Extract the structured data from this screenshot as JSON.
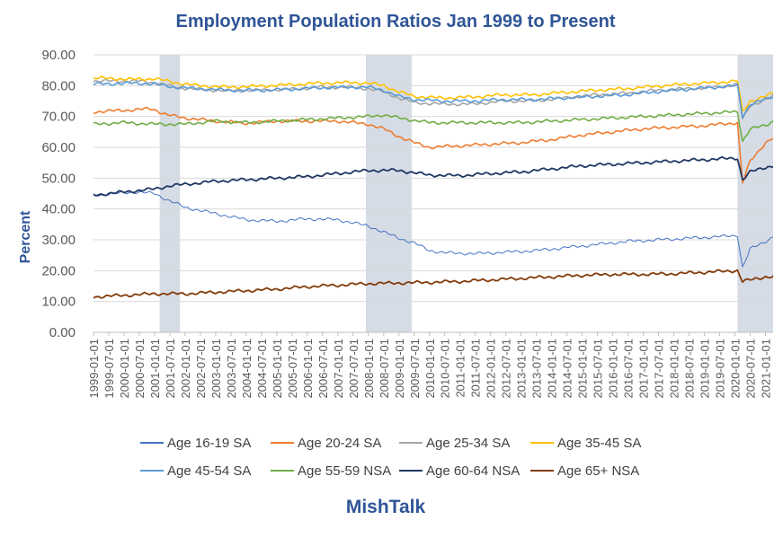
{
  "chart_data": {
    "type": "line",
    "title": "Employment Population Ratios Jan 1999 to Present",
    "ylabel": "Percent",
    "xlabel": "",
    "ylim": [
      0,
      90
    ],
    "yticks": [
      "0.00",
      "10.00",
      "20.00",
      "30.00",
      "40.00",
      "50.00",
      "60.00",
      "70.00",
      "80.00",
      "90.00"
    ],
    "x_start": "1999-01",
    "x_end": "2021-04",
    "x_tick_labels": [
      "1999-01-01",
      "1999-07-01",
      "2000-01-01",
      "2000-07-01",
      "2001-01-01",
      "2001-07-01",
      "2002-01-01",
      "2002-07-01",
      "2003-01-01",
      "2003-07-01",
      "2004-01-01",
      "2004-07-01",
      "2005-01-01",
      "2005-07-01",
      "2006-01-01",
      "2006-07-01",
      "2007-01-01",
      "2007-07-01",
      "2008-01-01",
      "2008-07-01",
      "2009-01-01",
      "2009-07-01",
      "2010-01-01",
      "2010-07-01",
      "2011-01-01",
      "2011-07-01",
      "2012-01-01",
      "2012-07-01",
      "2013-01-01",
      "2013-07-01",
      "2014-01-01",
      "2014-07-01",
      "2015-01-01",
      "2015-07-01",
      "2016-01-01",
      "2016-07-01",
      "2017-01-01",
      "2017-07-01",
      "2018-01-01",
      "2018-07-01",
      "2019-01-01",
      "2019-07-01",
      "2020-01-01",
      "2020-07-01",
      "2021-01-01"
    ],
    "recessions": [
      {
        "start": "2001-03",
        "end": "2001-11"
      },
      {
        "start": "2007-12",
        "end": "2009-06"
      },
      {
        "start": "2020-02",
        "end": "2021-04"
      }
    ],
    "series": [
      {
        "name": "Age 16-19 SA",
        "color": "#4472c4",
        "width": 1,
        "keypoints": [
          [
            "1999-01",
            44.5
          ],
          [
            "2000-06",
            45.5
          ],
          [
            "2001-01",
            45.0
          ],
          [
            "2001-06",
            43.0
          ],
          [
            "2002-01",
            40.5
          ],
          [
            "2003-01",
            38.5
          ],
          [
            "2004-01",
            36.5
          ],
          [
            "2005-01",
            36.0
          ],
          [
            "2006-01",
            36.8
          ],
          [
            "2007-01",
            36.5
          ],
          [
            "2008-01",
            34.5
          ],
          [
            "2008-07",
            32.5
          ],
          [
            "2009-01",
            30.5
          ],
          [
            "2009-07",
            29.0
          ],
          [
            "2010-01",
            26.5
          ],
          [
            "2010-07",
            25.8
          ],
          [
            "2011-07",
            25.5
          ],
          [
            "2012-07",
            26.0
          ],
          [
            "2013-07",
            26.5
          ],
          [
            "2014-07",
            27.5
          ],
          [
            "2015-07",
            28.5
          ],
          [
            "2016-07",
            29.5
          ],
          [
            "2017-07",
            30.0
          ],
          [
            "2018-07",
            30.5
          ],
          [
            "2019-07",
            31.0
          ],
          [
            "2020-02",
            31.5
          ],
          [
            "2020-04",
            21.0
          ],
          [
            "2020-07",
            27.0
          ],
          [
            "2021-01",
            29.5
          ],
          [
            "2021-04",
            31.0
          ]
        ]
      },
      {
        "name": "Age 20-24 SA",
        "color": "#ed7d31",
        "width": 1.6,
        "keypoints": [
          [
            "1999-01",
            71.5
          ],
          [
            "2000-01",
            72.0
          ],
          [
            "2000-12",
            72.5
          ],
          [
            "2001-06",
            70.5
          ],
          [
            "2002-01",
            69.5
          ],
          [
            "2003-01",
            68.5
          ],
          [
            "2004-01",
            67.8
          ],
          [
            "2005-01",
            68.5
          ],
          [
            "2006-01",
            68.5
          ],
          [
            "2007-01",
            68.5
          ],
          [
            "2008-01",
            67.5
          ],
          [
            "2008-07",
            66.0
          ],
          [
            "2009-01",
            63.5
          ],
          [
            "2009-07",
            61.5
          ],
          [
            "2010-01",
            60.0
          ],
          [
            "2011-01",
            60.5
          ],
          [
            "2012-01",
            61.0
          ],
          [
            "2013-01",
            61.5
          ],
          [
            "2014-01",
            62.5
          ],
          [
            "2015-01",
            64.0
          ],
          [
            "2016-01",
            65.0
          ],
          [
            "2017-01",
            66.0
          ],
          [
            "2018-01",
            66.5
          ],
          [
            "2019-01",
            67.0
          ],
          [
            "2020-02",
            68.0
          ],
          [
            "2020-04",
            48.5
          ],
          [
            "2020-07",
            55.5
          ],
          [
            "2021-01",
            61.5
          ],
          [
            "2021-04",
            63.0
          ]
        ]
      },
      {
        "name": "Age 25-34 SA",
        "color": "#a5a5a5",
        "width": 1.6,
        "keypoints": [
          [
            "1999-01",
            81.5
          ],
          [
            "2000-06",
            81.5
          ],
          [
            "2001-01",
            81.0
          ],
          [
            "2001-09",
            79.5
          ],
          [
            "2002-06",
            78.8
          ],
          [
            "2003-06",
            78.3
          ],
          [
            "2004-06",
            78.5
          ],
          [
            "2005-06",
            78.8
          ],
          [
            "2006-06",
            79.5
          ],
          [
            "2007-06",
            79.5
          ],
          [
            "2008-01",
            79.0
          ],
          [
            "2008-07",
            78.0
          ],
          [
            "2009-01",
            76.0
          ],
          [
            "2009-07",
            74.5
          ],
          [
            "2010-06",
            74.0
          ],
          [
            "2011-06",
            74.0
          ],
          [
            "2012-06",
            75.0
          ],
          [
            "2013-06",
            75.0
          ],
          [
            "2014-06",
            76.0
          ],
          [
            "2015-06",
            77.0
          ],
          [
            "2016-06",
            77.5
          ],
          [
            "2017-06",
            78.5
          ],
          [
            "2018-06",
            79.0
          ],
          [
            "2019-06",
            79.5
          ],
          [
            "2020-02",
            80.5
          ],
          [
            "2020-04",
            69.0
          ],
          [
            "2020-07",
            73.5
          ],
          [
            "2021-01",
            75.5
          ],
          [
            "2021-04",
            76.5
          ]
        ]
      },
      {
        "name": "Age 35-45 SA",
        "color": "#ffc000",
        "width": 1.6,
        "keypoints": [
          [
            "1999-01",
            82.5
          ],
          [
            "2000-06",
            82.0
          ],
          [
            "2001-01",
            82.3
          ],
          [
            "2001-09",
            81.0
          ],
          [
            "2002-06",
            80.0
          ],
          [
            "2003-06",
            79.5
          ],
          [
            "2004-06",
            79.8
          ],
          [
            "2005-06",
            80.3
          ],
          [
            "2006-06",
            80.8
          ],
          [
            "2007-06",
            81.0
          ],
          [
            "2008-01",
            80.8
          ],
          [
            "2008-07",
            80.0
          ],
          [
            "2009-01",
            78.0
          ],
          [
            "2009-07",
            76.5
          ],
          [
            "2010-06",
            76.0
          ],
          [
            "2011-06",
            76.3
          ],
          [
            "2012-06",
            77.0
          ],
          [
            "2013-06",
            77.0
          ],
          [
            "2014-06",
            77.8
          ],
          [
            "2015-06",
            78.5
          ],
          [
            "2016-06",
            79.0
          ],
          [
            "2017-06",
            79.8
          ],
          [
            "2018-06",
            80.5
          ],
          [
            "2019-06",
            81.0
          ],
          [
            "2020-02",
            81.5
          ],
          [
            "2020-04",
            71.5
          ],
          [
            "2020-07",
            75.0
          ],
          [
            "2021-01",
            76.5
          ],
          [
            "2021-04",
            77.5
          ]
        ]
      },
      {
        "name": "Age 45-54 SA",
        "color": "#5b9bd5",
        "width": 1.6,
        "keypoints": [
          [
            "1999-01",
            80.5
          ],
          [
            "2000-06",
            80.8
          ],
          [
            "2001-01",
            80.5
          ],
          [
            "2001-09",
            79.5
          ],
          [
            "2002-06",
            79.0
          ],
          [
            "2003-06",
            78.5
          ],
          [
            "2004-06",
            78.5
          ],
          [
            "2005-06",
            78.8
          ],
          [
            "2006-06",
            79.3
          ],
          [
            "2007-06",
            79.5
          ],
          [
            "2008-01",
            79.5
          ],
          [
            "2008-07",
            78.5
          ],
          [
            "2009-01",
            76.5
          ],
          [
            "2009-07",
            75.5
          ],
          [
            "2010-06",
            75.0
          ],
          [
            "2011-06",
            75.0
          ],
          [
            "2012-06",
            75.5
          ],
          [
            "2013-06",
            75.5
          ],
          [
            "2014-06",
            76.0
          ],
          [
            "2015-06",
            76.5
          ],
          [
            "2016-06",
            77.0
          ],
          [
            "2017-06",
            78.0
          ],
          [
            "2018-06",
            78.8
          ],
          [
            "2019-06",
            79.5
          ],
          [
            "2020-02",
            80.0
          ],
          [
            "2020-04",
            70.0
          ],
          [
            "2020-07",
            74.0
          ],
          [
            "2021-01",
            75.5
          ],
          [
            "2021-04",
            76.5
          ]
        ]
      },
      {
        "name": "Age 55-59 NSA",
        "color": "#70ad47",
        "width": 1.6,
        "keypoints": [
          [
            "1999-01",
            67.5
          ],
          [
            "2000-01",
            68.0
          ],
          [
            "2001-01",
            67.5
          ],
          [
            "2002-01",
            67.5
          ],
          [
            "2003-01",
            68.5
          ],
          [
            "2004-01",
            68.0
          ],
          [
            "2005-01",
            68.5
          ],
          [
            "2006-01",
            69.0
          ],
          [
            "2007-01",
            69.5
          ],
          [
            "2008-01",
            70.0
          ],
          [
            "2008-07",
            70.5
          ],
          [
            "2009-01",
            69.5
          ],
          [
            "2010-01",
            68.0
          ],
          [
            "2011-01",
            68.0
          ],
          [
            "2012-01",
            68.0
          ],
          [
            "2013-01",
            68.0
          ],
          [
            "2014-01",
            68.5
          ],
          [
            "2015-01",
            69.0
          ],
          [
            "2016-01",
            69.5
          ],
          [
            "2017-01",
            70.0
          ],
          [
            "2018-01",
            70.5
          ],
          [
            "2019-01",
            71.0
          ],
          [
            "2020-02",
            71.5
          ],
          [
            "2020-04",
            62.0
          ],
          [
            "2020-07",
            66.0
          ],
          [
            "2021-01",
            67.0
          ],
          [
            "2021-04",
            68.5
          ]
        ]
      },
      {
        "name": "Age 60-64 NSA",
        "color": "#203864",
        "width": 1.8,
        "keypoints": [
          [
            "1999-01",
            44.5
          ],
          [
            "2000-01",
            45.5
          ],
          [
            "2001-01",
            46.5
          ],
          [
            "2001-07",
            47.5
          ],
          [
            "2002-01",
            48.0
          ],
          [
            "2003-01",
            49.0
          ],
          [
            "2004-01",
            49.5
          ],
          [
            "2005-01",
            50.0
          ],
          [
            "2006-01",
            50.5
          ],
          [
            "2007-01",
            51.5
          ],
          [
            "2008-01",
            52.5
          ],
          [
            "2009-01",
            52.5
          ],
          [
            "2010-01",
            51.0
          ],
          [
            "2011-01",
            50.8
          ],
          [
            "2012-01",
            51.5
          ],
          [
            "2013-01",
            52.0
          ],
          [
            "2014-01",
            53.0
          ],
          [
            "2015-01",
            54.0
          ],
          [
            "2016-01",
            54.5
          ],
          [
            "2017-01",
            55.0
          ],
          [
            "2018-01",
            55.5
          ],
          [
            "2019-01",
            56.0
          ],
          [
            "2020-02",
            56.5
          ],
          [
            "2020-04",
            49.5
          ],
          [
            "2020-07",
            52.0
          ],
          [
            "2021-01",
            53.5
          ],
          [
            "2021-04",
            54.0
          ]
        ]
      },
      {
        "name": "Age 65+ NSA",
        "color": "#843c0c",
        "width": 1.8,
        "keypoints": [
          [
            "1999-01",
            11.5
          ],
          [
            "2000-01",
            12.0
          ],
          [
            "2001-01",
            12.5
          ],
          [
            "2002-01",
            12.5
          ],
          [
            "2003-01",
            13.0
          ],
          [
            "2004-01",
            13.5
          ],
          [
            "2005-01",
            14.0
          ],
          [
            "2006-01",
            14.8
          ],
          [
            "2007-01",
            15.3
          ],
          [
            "2008-01",
            15.8
          ],
          [
            "2009-01",
            16.0
          ],
          [
            "2010-01",
            16.2
          ],
          [
            "2011-01",
            16.5
          ],
          [
            "2012-01",
            17.0
          ],
          [
            "2013-01",
            17.5
          ],
          [
            "2014-01",
            18.0
          ],
          [
            "2015-01",
            18.5
          ],
          [
            "2016-01",
            18.8
          ],
          [
            "2017-01",
            18.8
          ],
          [
            "2018-01",
            19.0
          ],
          [
            "2019-01",
            19.5
          ],
          [
            "2020-02",
            20.0
          ],
          [
            "2020-04",
            16.5
          ],
          [
            "2020-07",
            17.0
          ],
          [
            "2021-01",
            18.0
          ],
          [
            "2021-04",
            18.0
          ]
        ]
      }
    ]
  },
  "legend": [
    {
      "label": "Age 16-19 SA",
      "color": "#4472c4"
    },
    {
      "label": "Age 20-24 SA",
      "color": "#ed7d31"
    },
    {
      "label": "Age 25-34 SA",
      "color": "#a5a5a5"
    },
    {
      "label": "Age 35-45 SA",
      "color": "#ffc000"
    },
    {
      "label": "Age 45-54 SA",
      "color": "#5b9bd5"
    },
    {
      "label": "Age 55-59 NSA",
      "color": "#70ad47"
    },
    {
      "label": "Age 60-64 NSA",
      "color": "#203864"
    },
    {
      "label": "Age 65+ NSA",
      "color": "#843c0c"
    }
  ],
  "brand": "MishTalk"
}
